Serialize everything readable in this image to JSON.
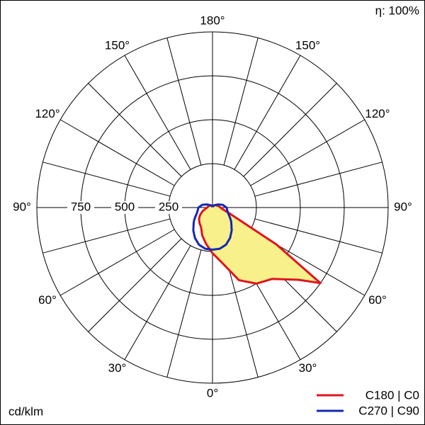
{
  "chart_data": {
    "type": "polar",
    "efficiency_label": "η: 100%",
    "unit_label": "cd/klm",
    "rlim": [
      0,
      1000
    ],
    "rticks": [
      250,
      500,
      750
    ],
    "angle_ticks": [
      {
        "value": 0,
        "label": "0°"
      },
      {
        "value": 30,
        "label": "30°"
      },
      {
        "value": 60,
        "label": "60°"
      },
      {
        "value": 90,
        "label": "90°"
      },
      {
        "value": 120,
        "label": "120°"
      },
      {
        "value": 150,
        "label": "150°"
      },
      {
        "value": 180,
        "label": "180°"
      }
    ],
    "gamma": [
      0,
      10,
      20,
      30,
      40,
      50,
      55,
      60,
      70,
      80,
      90,
      105,
      120,
      135,
      150,
      165,
      180
    ],
    "series": [
      {
        "name": "C180 | C0",
        "color": "#e0141e",
        "fill": "#f8f08a",
        "right": [
          260,
          320,
          440,
          500,
          530,
          640,
          750,
          420,
          110,
          60,
          45,
          35,
          25,
          20,
          15,
          12,
          10
        ],
        "left": [
          260,
          210,
          170,
          130,
          115,
          100,
          90,
          80,
          60,
          40,
          30,
          25,
          20,
          18,
          15,
          12,
          10
        ]
      },
      {
        "name": "C270 | C90",
        "color": "#1428b4",
        "right": [
          240,
          238,
          225,
          200,
          170,
          140,
          128,
          115,
          95,
          85,
          80,
          60,
          35,
          20,
          10,
          5,
          3
        ],
        "left": [
          240,
          238,
          225,
          200,
          170,
          140,
          128,
          115,
          95,
          85,
          80,
          60,
          35,
          20,
          10,
          5,
          3
        ]
      }
    ]
  }
}
